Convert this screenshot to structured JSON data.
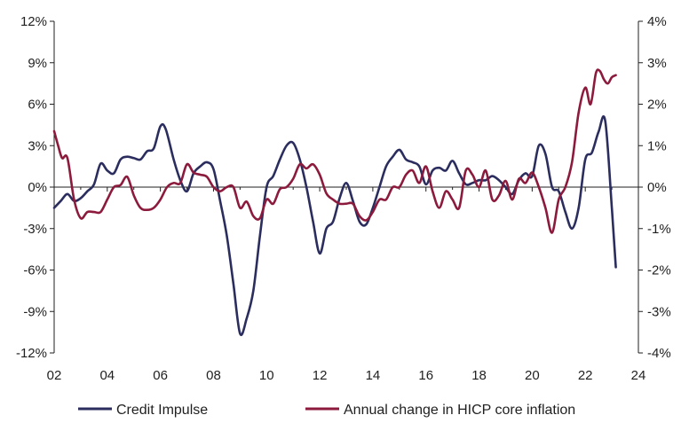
{
  "chart_data": {
    "type": "line",
    "title": "",
    "xlabel": "",
    "ylabel_left": "",
    "ylabel_right": "",
    "xlim": [
      2002,
      2024
    ],
    "x_ticks": [
      2002,
      2004,
      2006,
      2008,
      2010,
      2012,
      2014,
      2016,
      2018,
      2020,
      2022,
      2024
    ],
    "x_tick_labels": [
      "02",
      "04",
      "06",
      "08",
      "10",
      "12",
      "14",
      "16",
      "18",
      "20",
      "22",
      "24"
    ],
    "y_left": {
      "lim": [
        -12,
        12
      ],
      "ticks": [
        -12,
        -9,
        -6,
        -3,
        0,
        3,
        6,
        9,
        12
      ],
      "tick_labels": [
        "-12%",
        "-9%",
        "-6%",
        "-3%",
        "0%",
        "3%",
        "6%",
        "9%",
        "12%"
      ]
    },
    "y_right": {
      "lim": [
        -4,
        4
      ],
      "ticks": [
        -4,
        -3,
        -2,
        -1,
        0,
        1,
        2,
        3,
        4
      ],
      "tick_labels": [
        "-4%",
        "-3%",
        "-2%",
        "-1%",
        "0%",
        "1%",
        "2%",
        "3%",
        "4%"
      ]
    },
    "grid": false,
    "legend_position": "bottom",
    "series": [
      {
        "name": "Credit Impulse",
        "axis": "left",
        "color": "#2b2d5e",
        "points": [
          [
            2002.0,
            -1.5
          ],
          [
            2002.25,
            -1.0
          ],
          [
            2002.5,
            -0.5
          ],
          [
            2002.75,
            -1.0
          ],
          [
            2003.0,
            -0.8
          ],
          [
            2003.25,
            -0.3
          ],
          [
            2003.5,
            0.2
          ],
          [
            2003.75,
            1.7
          ],
          [
            2004.0,
            1.2
          ],
          [
            2004.25,
            1.0
          ],
          [
            2004.5,
            2.0
          ],
          [
            2004.75,
            2.2
          ],
          [
            2005.0,
            2.1
          ],
          [
            2005.25,
            2.0
          ],
          [
            2005.5,
            2.6
          ],
          [
            2005.75,
            2.8
          ],
          [
            2006.0,
            4.4
          ],
          [
            2006.2,
            4.2
          ],
          [
            2006.5,
            2.0
          ],
          [
            2006.75,
            0.5
          ],
          [
            2007.0,
            -0.3
          ],
          [
            2007.25,
            1.0
          ],
          [
            2007.5,
            1.5
          ],
          [
            2007.75,
            1.8
          ],
          [
            2008.0,
            1.3
          ],
          [
            2008.25,
            -1.0
          ],
          [
            2008.5,
            -3.5
          ],
          [
            2008.75,
            -7.0
          ],
          [
            2009.0,
            -10.6
          ],
          [
            2009.25,
            -9.5
          ],
          [
            2009.5,
            -7.5
          ],
          [
            2009.75,
            -3.5
          ],
          [
            2010.0,
            0.0
          ],
          [
            2010.25,
            0.8
          ],
          [
            2010.5,
            2.0
          ],
          [
            2010.75,
            3.0
          ],
          [
            2011.0,
            3.2
          ],
          [
            2011.25,
            2.0
          ],
          [
            2011.5,
            0.0
          ],
          [
            2011.75,
            -2.5
          ],
          [
            2012.0,
            -4.8
          ],
          [
            2012.25,
            -3.0
          ],
          [
            2012.5,
            -2.5
          ],
          [
            2012.75,
            -0.8
          ],
          [
            2013.0,
            0.3
          ],
          [
            2013.25,
            -1.0
          ],
          [
            2013.5,
            -2.5
          ],
          [
            2013.75,
            -2.7
          ],
          [
            2014.0,
            -1.5
          ],
          [
            2014.25,
            0.0
          ],
          [
            2014.5,
            1.5
          ],
          [
            2014.75,
            2.2
          ],
          [
            2015.0,
            2.7
          ],
          [
            2015.25,
            2.0
          ],
          [
            2015.5,
            1.8
          ],
          [
            2015.75,
            1.5
          ],
          [
            2016.0,
            0.2
          ],
          [
            2016.25,
            1.2
          ],
          [
            2016.5,
            1.4
          ],
          [
            2016.75,
            1.2
          ],
          [
            2017.0,
            1.9
          ],
          [
            2017.25,
            1.0
          ],
          [
            2017.5,
            0.2
          ],
          [
            2017.75,
            0.3
          ],
          [
            2018.0,
            0.5
          ],
          [
            2018.25,
            0.5
          ],
          [
            2018.5,
            0.8
          ],
          [
            2018.75,
            0.5
          ],
          [
            2019.0,
            0.0
          ],
          [
            2019.25,
            -0.5
          ],
          [
            2019.5,
            0.5
          ],
          [
            2019.75,
            1.0
          ],
          [
            2020.0,
            0.8
          ],
          [
            2020.25,
            3.0
          ],
          [
            2020.5,
            2.4
          ],
          [
            2020.75,
            0.0
          ],
          [
            2021.0,
            -0.3
          ],
          [
            2021.25,
            -1.8
          ],
          [
            2021.5,
            -3.0
          ],
          [
            2021.75,
            -1.5
          ],
          [
            2022.0,
            2.0
          ],
          [
            2022.25,
            2.5
          ],
          [
            2022.5,
            4.0
          ],
          [
            2022.75,
            4.8
          ],
          [
            2023.0,
            -1.5
          ],
          [
            2023.15,
            -5.8
          ]
        ]
      },
      {
        "name": "Annual change in HICP core inflation",
        "axis": "right",
        "color": "#8c1a3c",
        "points": [
          [
            2002.0,
            1.35
          ],
          [
            2002.15,
            1.0
          ],
          [
            2002.3,
            0.7
          ],
          [
            2002.5,
            0.7
          ],
          [
            2002.75,
            -0.3
          ],
          [
            2003.0,
            -0.75
          ],
          [
            2003.25,
            -0.6
          ],
          [
            2003.5,
            -0.6
          ],
          [
            2003.75,
            -0.6
          ],
          [
            2004.0,
            -0.3
          ],
          [
            2004.25,
            0.0
          ],
          [
            2004.5,
            0.05
          ],
          [
            2004.75,
            0.25
          ],
          [
            2005.0,
            -0.2
          ],
          [
            2005.25,
            -0.5
          ],
          [
            2005.5,
            -0.55
          ],
          [
            2005.75,
            -0.5
          ],
          [
            2006.0,
            -0.3
          ],
          [
            2006.25,
            0.0
          ],
          [
            2006.5,
            0.1
          ],
          [
            2006.75,
            0.1
          ],
          [
            2007.0,
            0.55
          ],
          [
            2007.25,
            0.35
          ],
          [
            2007.5,
            0.3
          ],
          [
            2007.75,
            0.25
          ],
          [
            2008.0,
            0.0
          ],
          [
            2008.25,
            -0.1
          ],
          [
            2008.5,
            0.0
          ],
          [
            2008.75,
            0.0
          ],
          [
            2009.0,
            -0.5
          ],
          [
            2009.25,
            -0.35
          ],
          [
            2009.5,
            -0.7
          ],
          [
            2009.75,
            -0.75
          ],
          [
            2010.0,
            -0.3
          ],
          [
            2010.25,
            -0.4
          ],
          [
            2010.5,
            -0.05
          ],
          [
            2010.75,
            0.0
          ],
          [
            2011.0,
            0.2
          ],
          [
            2011.25,
            0.55
          ],
          [
            2011.5,
            0.45
          ],
          [
            2011.75,
            0.55
          ],
          [
            2012.0,
            0.3
          ],
          [
            2012.25,
            -0.15
          ],
          [
            2012.5,
            -0.3
          ],
          [
            2012.75,
            -0.4
          ],
          [
            2013.0,
            -0.4
          ],
          [
            2013.25,
            -0.4
          ],
          [
            2013.5,
            -0.7
          ],
          [
            2013.75,
            -0.8
          ],
          [
            2014.0,
            -0.6
          ],
          [
            2014.25,
            -0.3
          ],
          [
            2014.5,
            -0.3
          ],
          [
            2014.75,
            0.0
          ],
          [
            2015.0,
            0.0
          ],
          [
            2015.25,
            0.3
          ],
          [
            2015.5,
            0.4
          ],
          [
            2015.75,
            0.1
          ],
          [
            2016.0,
            0.5
          ],
          [
            2016.25,
            -0.1
          ],
          [
            2016.5,
            -0.5
          ],
          [
            2016.75,
            -0.1
          ],
          [
            2017.0,
            -0.3
          ],
          [
            2017.25,
            -0.5
          ],
          [
            2017.5,
            0.4
          ],
          [
            2017.75,
            0.3
          ],
          [
            2018.0,
            0.0
          ],
          [
            2018.25,
            0.4
          ],
          [
            2018.5,
            -0.3
          ],
          [
            2018.75,
            -0.2
          ],
          [
            2019.0,
            0.15
          ],
          [
            2019.25,
            -0.3
          ],
          [
            2019.5,
            0.2
          ],
          [
            2019.75,
            0.1
          ],
          [
            2020.0,
            0.35
          ],
          [
            2020.25,
            0.0
          ],
          [
            2020.5,
            -0.5
          ],
          [
            2020.75,
            -1.1
          ],
          [
            2021.0,
            -0.3
          ],
          [
            2021.25,
            0.0
          ],
          [
            2021.5,
            0.6
          ],
          [
            2021.75,
            1.8
          ],
          [
            2022.0,
            2.4
          ],
          [
            2022.2,
            2.0
          ],
          [
            2022.4,
            2.75
          ],
          [
            2022.55,
            2.8
          ],
          [
            2022.7,
            2.6
          ],
          [
            2022.85,
            2.5
          ],
          [
            2023.0,
            2.65
          ],
          [
            2023.15,
            2.7
          ]
        ]
      }
    ]
  },
  "legend": {
    "items": [
      {
        "label": "Credit Impulse",
        "color": "#2b2d5e"
      },
      {
        "label": "Annual change in HICP core inflation",
        "color": "#8c1a3c"
      }
    ]
  }
}
